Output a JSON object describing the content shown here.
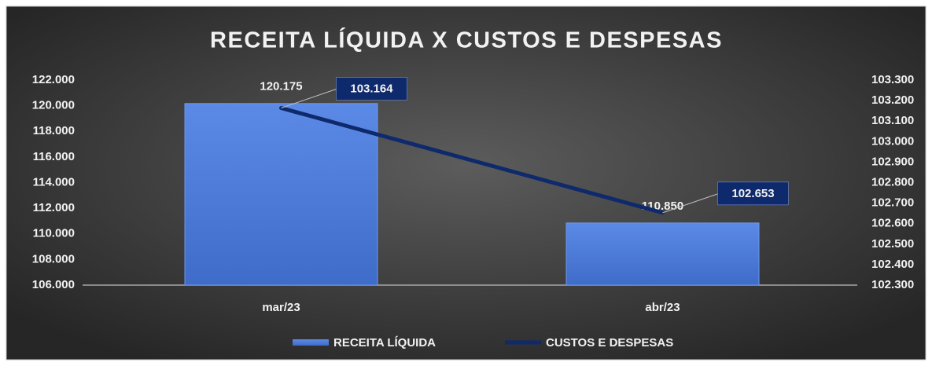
{
  "chart_data": {
    "type": "bar_line",
    "title": "RECEITA LÍQUIDA X CUSTOS E DESPESAS",
    "categories": [
      "mar/23",
      "abr/23"
    ],
    "series": [
      {
        "name": "RECEITA LÍQUIDA",
        "type": "bar",
        "color": "#4f7fdc",
        "values": [
          120175,
          110850
        ],
        "value_labels": [
          "120.175",
          "110.850"
        ]
      },
      {
        "name": "CUSTOS E DESPESAS",
        "type": "line",
        "axis": "y2",
        "color": "#0e2a6c",
        "values": [
          103164,
          102653
        ],
        "value_labels": [
          "103.164",
          "102.653"
        ]
      }
    ],
    "ylim": [
      106000,
      122000
    ],
    "yticks": [
      {
        "value": 106000,
        "label": "106.000"
      },
      {
        "value": 108000,
        "label": "108.000"
      },
      {
        "value": 110000,
        "label": "110.000"
      },
      {
        "value": 112000,
        "label": "112.000"
      },
      {
        "value": 114000,
        "label": "114.000"
      },
      {
        "value": 116000,
        "label": "116.000"
      },
      {
        "value": 118000,
        "label": "118.000"
      },
      {
        "value": 120000,
        "label": "120.000"
      },
      {
        "value": 122000,
        "label": "122.000"
      }
    ],
    "y2lim": [
      102300,
      103300
    ],
    "y2ticks": [
      {
        "value": 102300,
        "label": "102.300"
      },
      {
        "value": 102400,
        "label": "102.400"
      },
      {
        "value": 102500,
        "label": "102.500"
      },
      {
        "value": 102600,
        "label": "102.600"
      },
      {
        "value": 102700,
        "label": "102.700"
      },
      {
        "value": 102800,
        "label": "102.800"
      },
      {
        "value": 102900,
        "label": "102.900"
      },
      {
        "value": 103000,
        "label": "103.000"
      },
      {
        "value": 103100,
        "label": "103.100"
      },
      {
        "value": 103200,
        "label": "103.200"
      },
      {
        "value": 103300,
        "label": "103.300"
      }
    ],
    "grid": false,
    "legend": "bottom"
  }
}
